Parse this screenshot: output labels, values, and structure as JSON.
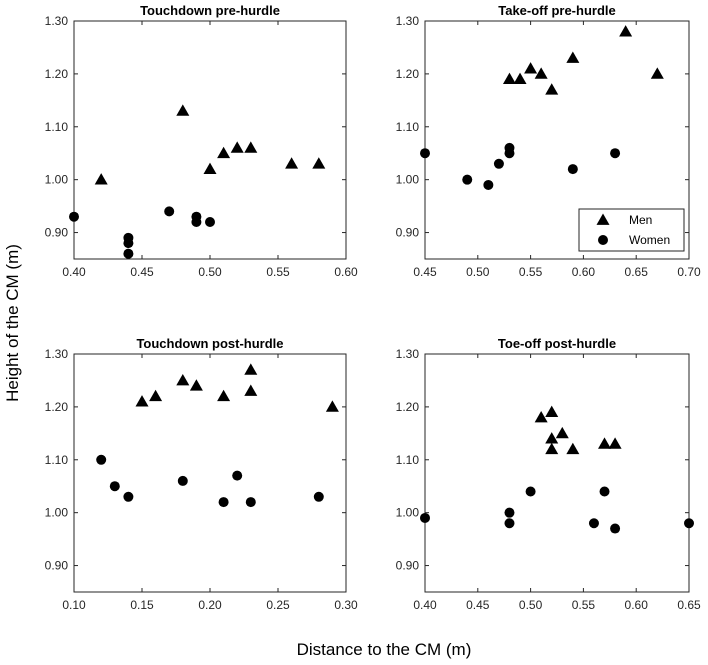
{
  "figure": {
    "ylabel": "Height of the CM (m)",
    "xlabel": "Distance to the CM (m)"
  },
  "legend": {
    "entries": [
      {
        "label": "Men",
        "marker": "triangle"
      },
      {
        "label": "Women",
        "marker": "circle"
      }
    ],
    "location": "bottom-right of Take-off pre-hurdle panel"
  },
  "colors": {
    "marker": "#000000",
    "axis": "#262626",
    "background": "#ffffff"
  },
  "chart_data": [
    {
      "type": "scatter",
      "title": "Touchdown pre-hurdle",
      "xlim": [
        0.4,
        0.6
      ],
      "ylim": [
        0.85,
        1.3
      ],
      "xticks": [
        "0.40",
        "0.45",
        "0.50",
        "0.55",
        "0.60"
      ],
      "yticks": [
        "0.90",
        "1.00",
        "1.10",
        "1.20",
        "1.30"
      ],
      "series": [
        {
          "name": "Men",
          "marker": "triangle",
          "points": [
            [
              0.42,
              1.0
            ],
            [
              0.48,
              1.13
            ],
            [
              0.5,
              1.02
            ],
            [
              0.51,
              1.05
            ],
            [
              0.52,
              1.06
            ],
            [
              0.53,
              1.06
            ],
            [
              0.56,
              1.03
            ],
            [
              0.58,
              1.03
            ]
          ]
        },
        {
          "name": "Women",
          "marker": "circle",
          "points": [
            [
              0.4,
              0.93
            ],
            [
              0.44,
              0.89
            ],
            [
              0.44,
              0.88
            ],
            [
              0.44,
              0.86
            ],
            [
              0.47,
              0.94
            ],
            [
              0.49,
              0.93
            ],
            [
              0.49,
              0.92
            ],
            [
              0.5,
              0.92
            ]
          ]
        }
      ]
    },
    {
      "type": "scatter",
      "title": "Take-off pre-hurdle",
      "xlim": [
        0.45,
        0.7
      ],
      "ylim": [
        0.85,
        1.3
      ],
      "xticks": [
        "0.45",
        "0.50",
        "0.55",
        "0.60",
        "0.65",
        "0.70"
      ],
      "yticks": [
        "0.90",
        "1.00",
        "1.10",
        "1.20",
        "1.30"
      ],
      "series": [
        {
          "name": "Men",
          "marker": "triangle",
          "points": [
            [
              0.53,
              1.19
            ],
            [
              0.54,
              1.19
            ],
            [
              0.55,
              1.21
            ],
            [
              0.56,
              1.2
            ],
            [
              0.57,
              1.17
            ],
            [
              0.59,
              1.23
            ],
            [
              0.64,
              1.28
            ],
            [
              0.67,
              1.2
            ]
          ]
        },
        {
          "name": "Women",
          "marker": "circle",
          "points": [
            [
              0.45,
              1.05
            ],
            [
              0.49,
              1.0
            ],
            [
              0.51,
              0.99
            ],
            [
              0.52,
              1.03
            ],
            [
              0.53,
              1.06
            ],
            [
              0.53,
              1.05
            ],
            [
              0.59,
              1.02
            ],
            [
              0.63,
              1.05
            ]
          ]
        }
      ]
    },
    {
      "type": "scatter",
      "title": "Touchdown post-hurdle",
      "xlim": [
        0.1,
        0.3
      ],
      "ylim": [
        0.85,
        1.3
      ],
      "xticks": [
        "0.10",
        "0.15",
        "0.20",
        "0.25",
        "0.30"
      ],
      "yticks": [
        "0.90",
        "1.00",
        "1.10",
        "1.20",
        "1.30"
      ],
      "series": [
        {
          "name": "Men",
          "marker": "triangle",
          "points": [
            [
              0.15,
              1.21
            ],
            [
              0.16,
              1.22
            ],
            [
              0.18,
              1.25
            ],
            [
              0.19,
              1.24
            ],
            [
              0.21,
              1.22
            ],
            [
              0.23,
              1.27
            ],
            [
              0.23,
              1.23
            ],
            [
              0.29,
              1.2
            ]
          ]
        },
        {
          "name": "Women",
          "marker": "circle",
          "points": [
            [
              0.12,
              1.1
            ],
            [
              0.13,
              1.05
            ],
            [
              0.14,
              1.03
            ],
            [
              0.18,
              1.06
            ],
            [
              0.21,
              1.02
            ],
            [
              0.22,
              1.07
            ],
            [
              0.23,
              1.02
            ],
            [
              0.28,
              1.03
            ]
          ]
        }
      ]
    },
    {
      "type": "scatter",
      "title": "Toe-off post-hurdle",
      "xlim": [
        0.4,
        0.65
      ],
      "ylim": [
        0.85,
        1.3
      ],
      "xticks": [
        "0.40",
        "0.45",
        "0.50",
        "0.55",
        "0.60",
        "0.65"
      ],
      "yticks": [
        "0.90",
        "1.00",
        "1.10",
        "1.20",
        "1.30"
      ],
      "series": [
        {
          "name": "Men",
          "marker": "triangle",
          "points": [
            [
              0.51,
              1.18
            ],
            [
              0.52,
              1.19
            ],
            [
              0.52,
              1.14
            ],
            [
              0.52,
              1.12
            ],
            [
              0.53,
              1.15
            ],
            [
              0.54,
              1.12
            ],
            [
              0.57,
              1.13
            ],
            [
              0.58,
              1.13
            ]
          ]
        },
        {
          "name": "Women",
          "marker": "circle",
          "points": [
            [
              0.4,
              0.99
            ],
            [
              0.48,
              1.0
            ],
            [
              0.48,
              0.98
            ],
            [
              0.5,
              1.04
            ],
            [
              0.56,
              0.98
            ],
            [
              0.57,
              1.04
            ],
            [
              0.58,
              0.97
            ],
            [
              0.65,
              0.98
            ]
          ]
        }
      ]
    }
  ]
}
